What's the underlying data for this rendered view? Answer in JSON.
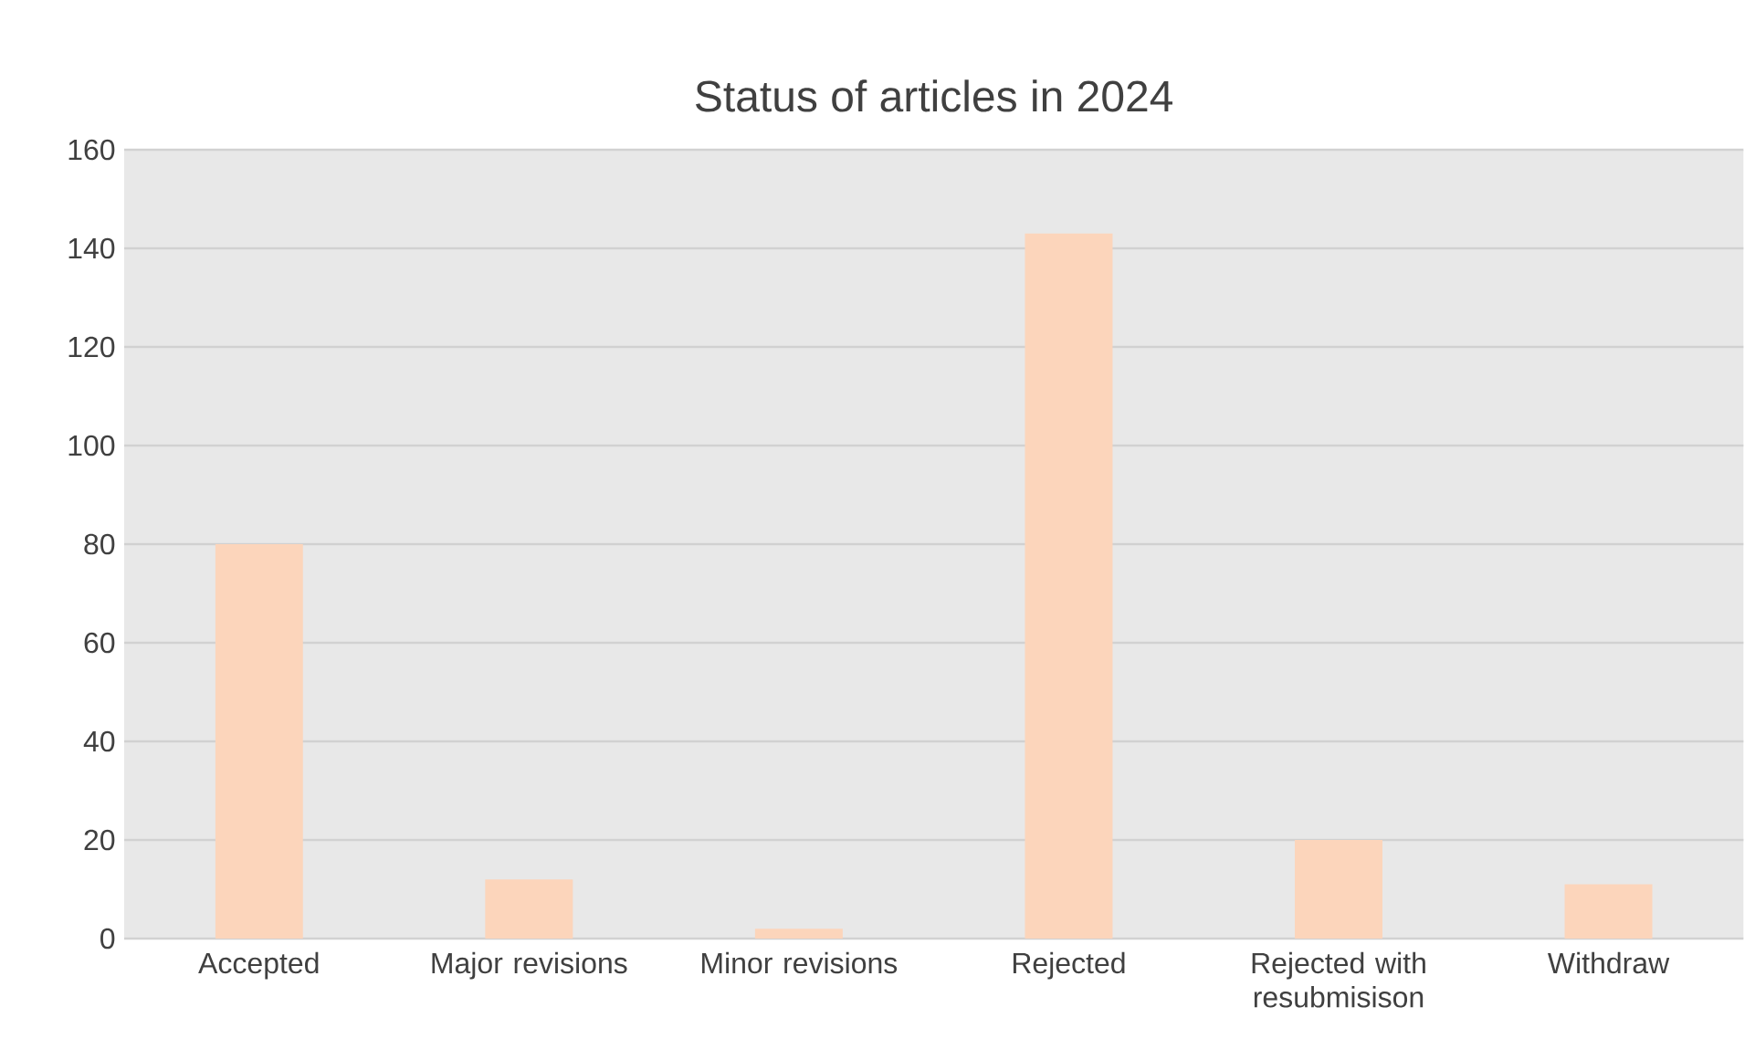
{
  "chart_data": {
    "type": "bar",
    "title": "Status of articles in 2024",
    "categories": [
      "Accepted",
      "Major revisions",
      "Minor revisions",
      "Rejected",
      "Rejected with resubmisison",
      "Withdraw"
    ],
    "values": [
      80,
      12,
      2,
      143,
      20,
      11
    ],
    "color": "#fcd5bb",
    "ylim": [
      0,
      160
    ],
    "yticks": [
      0,
      20,
      40,
      60,
      80,
      100,
      120,
      140,
      160
    ],
    "grid": "y"
  }
}
